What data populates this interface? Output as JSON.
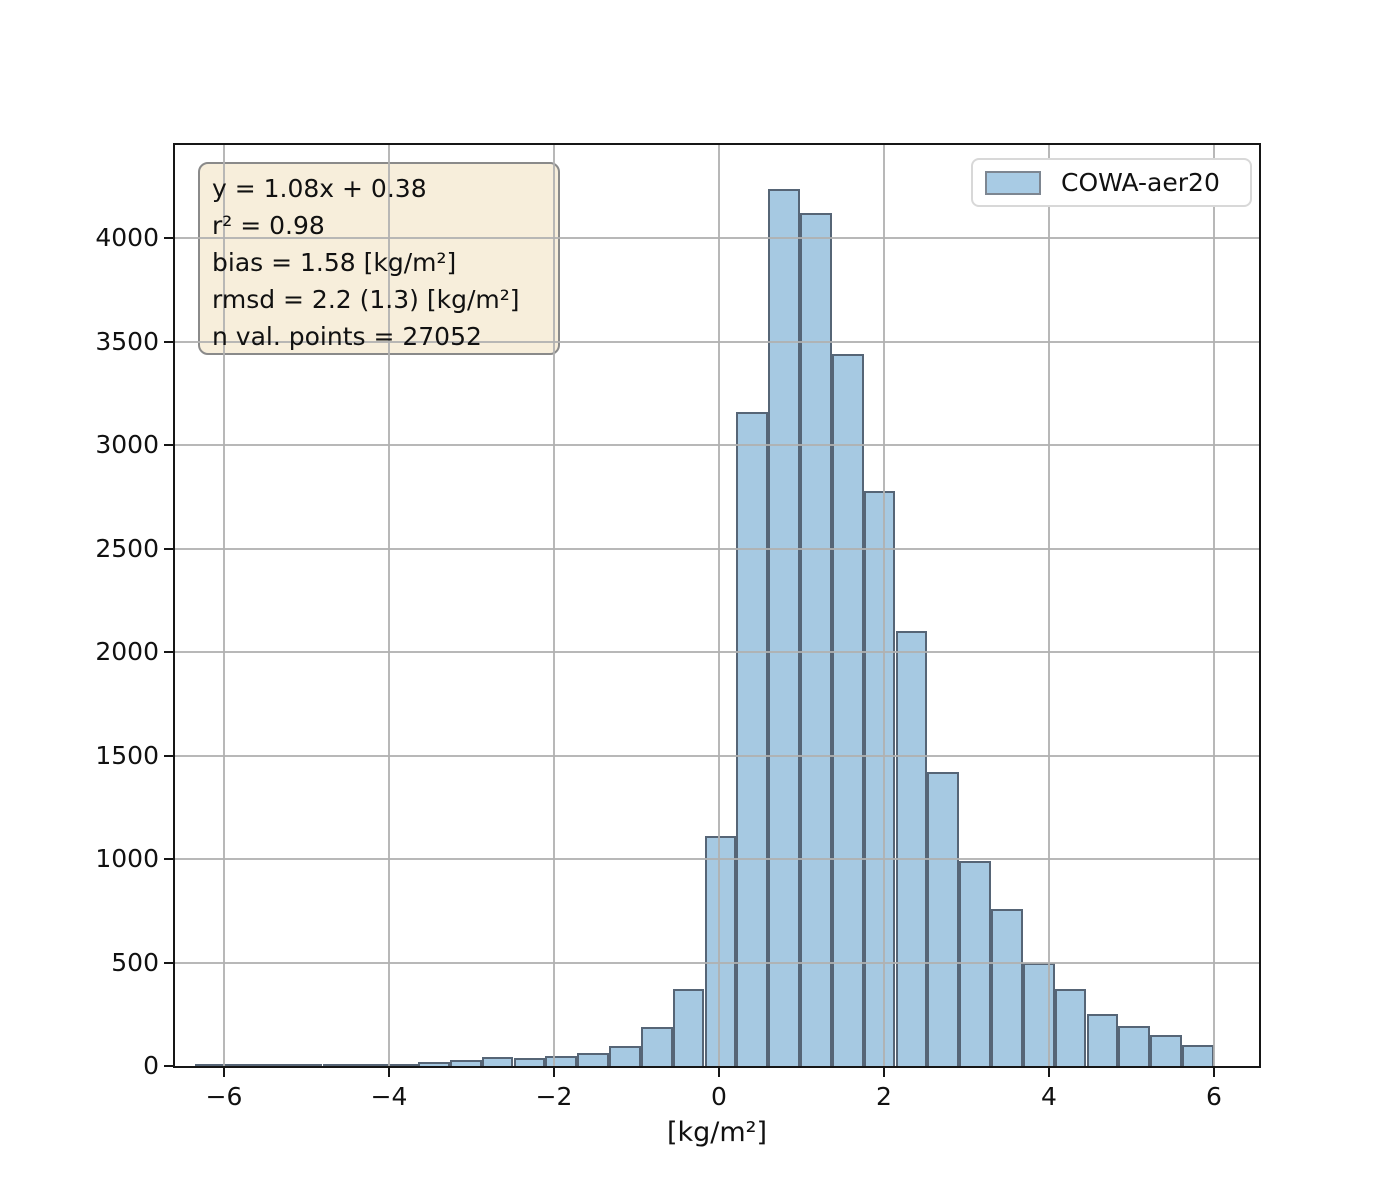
{
  "figure": {
    "background": "#ffffff"
  },
  "stats_box": {
    "lines": [
      "y = 1.08x + 0.38",
      "r² = 0.98",
      "bias = 1.58 [kg/m²]",
      "rmsd = 2.2 (1.3) [kg/m²]",
      "n val. points = 27052"
    ],
    "background": "#f7eedb",
    "border_color": "#8a8a8a"
  },
  "legend": {
    "label": "COWA-aer20",
    "swatch_fill": "#a8cbe4",
    "swatch_border": "#7d8691"
  },
  "axes": {
    "xlabel": "[kg/m²]",
    "ylabel": ""
  },
  "chart_data": {
    "type": "bar",
    "subtype": "histogram",
    "title": "",
    "xlabel": "[kg/m²]",
    "ylabel": "",
    "legend": [
      "COWA-aer20"
    ],
    "legend_position": "upper right",
    "grid": true,
    "annotations": [
      "y = 1.08x + 0.38",
      "r² = 0.98",
      "bias = 1.58 [kg/m²]",
      "rmsd = 2.2 (1.3) [kg/m²]",
      "n val. points = 27052"
    ],
    "xlim": [
      -6.594,
      6.545
    ],
    "ylim": [
      0,
      4450
    ],
    "x_ticks": [
      -6,
      -4,
      -2,
      0,
      2,
      4,
      6
    ],
    "x_tick_labels": [
      "−6",
      "−4",
      "−2",
      "0",
      "2",
      "4",
      "6"
    ],
    "y_ticks": [
      0,
      500,
      1000,
      1500,
      2000,
      2500,
      3000,
      3500,
      4000
    ],
    "y_tick_labels": [
      "0",
      "500",
      "1000",
      "1500",
      "2000",
      "2500",
      "3000",
      "3500",
      "4000"
    ],
    "bin_edges": [
      -6.35,
      -5.964,
      -5.578,
      -5.192,
      -4.806,
      -4.42,
      -4.034,
      -3.648,
      -3.262,
      -2.877,
      -2.491,
      -2.105,
      -1.719,
      -1.333,
      -0.947,
      -0.561,
      -0.175,
      0.211,
      0.597,
      0.982,
      1.368,
      1.754,
      2.14,
      2.526,
      2.912,
      3.298,
      3.684,
      4.069,
      4.455,
      4.841,
      5.227,
      5.613,
      6.0
    ],
    "counts": [
      1,
      2,
      4,
      5,
      6,
      8,
      12,
      20,
      30,
      45,
      40,
      50,
      62,
      95,
      190,
      370,
      1110,
      3160,
      4240,
      4120,
      3440,
      2780,
      2100,
      1420,
      990,
      760,
      500,
      370,
      250,
      195,
      150,
      100
    ],
    "style": {
      "bar_fill": "#a6c9e2",
      "bar_edge": "#566576",
      "grid_color": "#b0b0b0",
      "spine_color": "#161616",
      "tick_label_color": "#111111"
    }
  }
}
